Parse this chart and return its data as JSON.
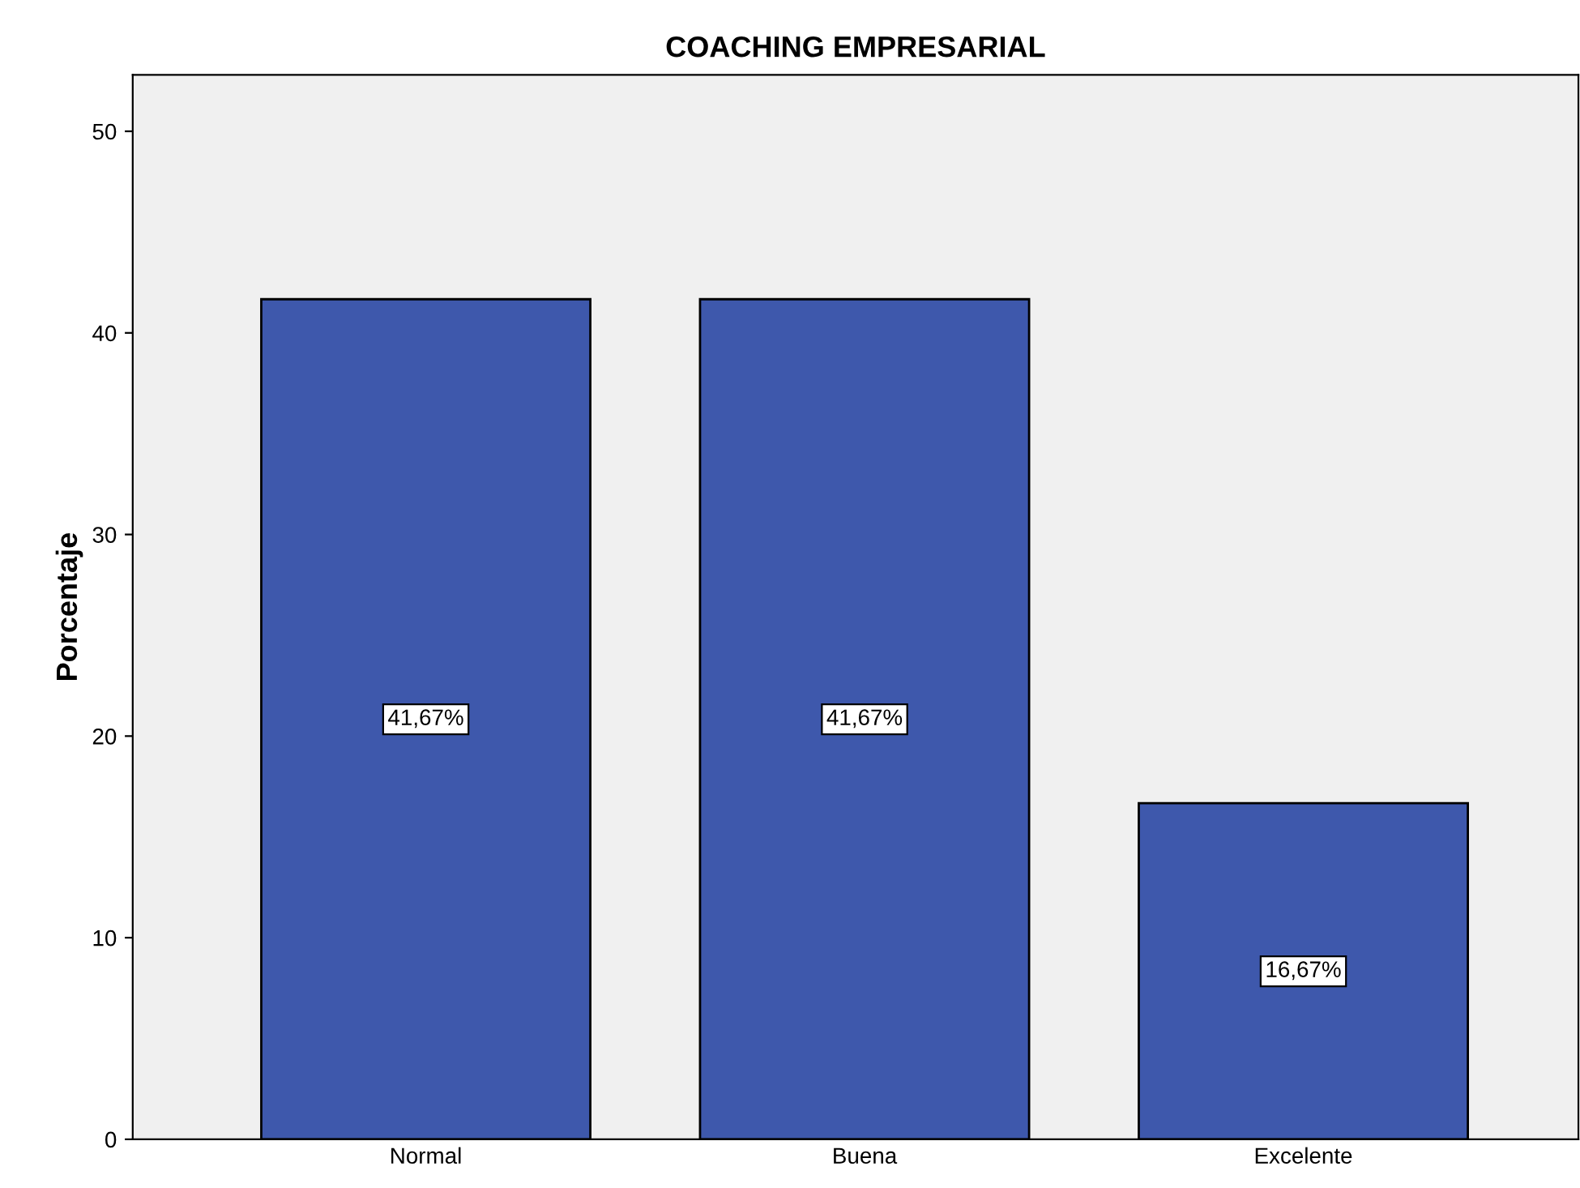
{
  "chart_data": {
    "type": "bar",
    "title": "COACHING EMPRESARIAL",
    "ylabel": "Porcentaje",
    "categories": [
      "Normal",
      "Buena",
      "Excelente"
    ],
    "values": [
      41.67,
      41.67,
      16.67
    ],
    "value_labels": [
      "41,67%",
      "41,67%",
      "16,67%"
    ],
    "color": "#3e58ac",
    "ylim": [
      0,
      52.8
    ],
    "yticks": [
      0,
      10,
      20,
      30,
      40,
      50
    ],
    "grid": false,
    "legend": false
  }
}
